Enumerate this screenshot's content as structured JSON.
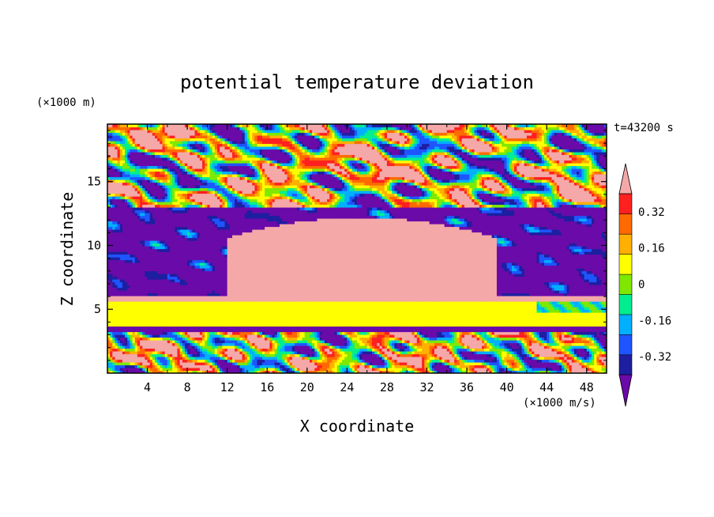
{
  "chart_data": {
    "type": "heatmap",
    "title": "potential temperature deviation",
    "xlabel": "X coordinate",
    "ylabel": "Z coordinate",
    "x_unit": "(×1000 m/s)",
    "y_unit": "(×1000 m)",
    "time_label": "t=43200 s",
    "xlim": [
      0,
      50
    ],
    "ylim": [
      0,
      19.5
    ],
    "x_ticks": [
      4,
      8,
      12,
      16,
      20,
      24,
      28,
      32,
      36,
      40,
      44,
      48
    ],
    "y_ticks": [
      5,
      10,
      15
    ],
    "colorbar": {
      "levels": [
        -0.4,
        -0.32,
        -0.24,
        -0.16,
        -0.08,
        0,
        0.08,
        0.16,
        0.24,
        0.32,
        0.4
      ],
      "labels": [
        "0.32",
        "0.16",
        "0",
        "-0.16",
        "-0.32"
      ],
      "label_values": [
        0.32,
        0.16,
        0,
        -0.16,
        -0.32
      ],
      "colors": [
        "#6a0aa8",
        "#1e1ea0",
        "#1e55ff",
        "#00b0ff",
        "#00ee90",
        "#80e800",
        "#ffff00",
        "#ffb000",
        "#ff6a00",
        "#ff2020",
        "#f4a8a8"
      ],
      "extend": "both"
    },
    "regions": [
      {
        "name": "upper turbulent layer",
        "z": [
          13,
          19.5
        ],
        "pattern": "mixed positive and negative cells"
      },
      {
        "name": "negative band",
        "z": [
          6,
          13
        ],
        "value": -0.4
      },
      {
        "name": "warm anomaly",
        "x": [
          12,
          39
        ],
        "z": [
          6,
          12.2
        ],
        "value": 0.4
      },
      {
        "name": "neutral band",
        "z": [
          3.5,
          5.5
        ],
        "value": 0
      },
      {
        "name": "lower turbulent layer",
        "z": [
          0,
          3.5
        ],
        "pattern": "mixed positive and negative cells"
      }
    ]
  }
}
